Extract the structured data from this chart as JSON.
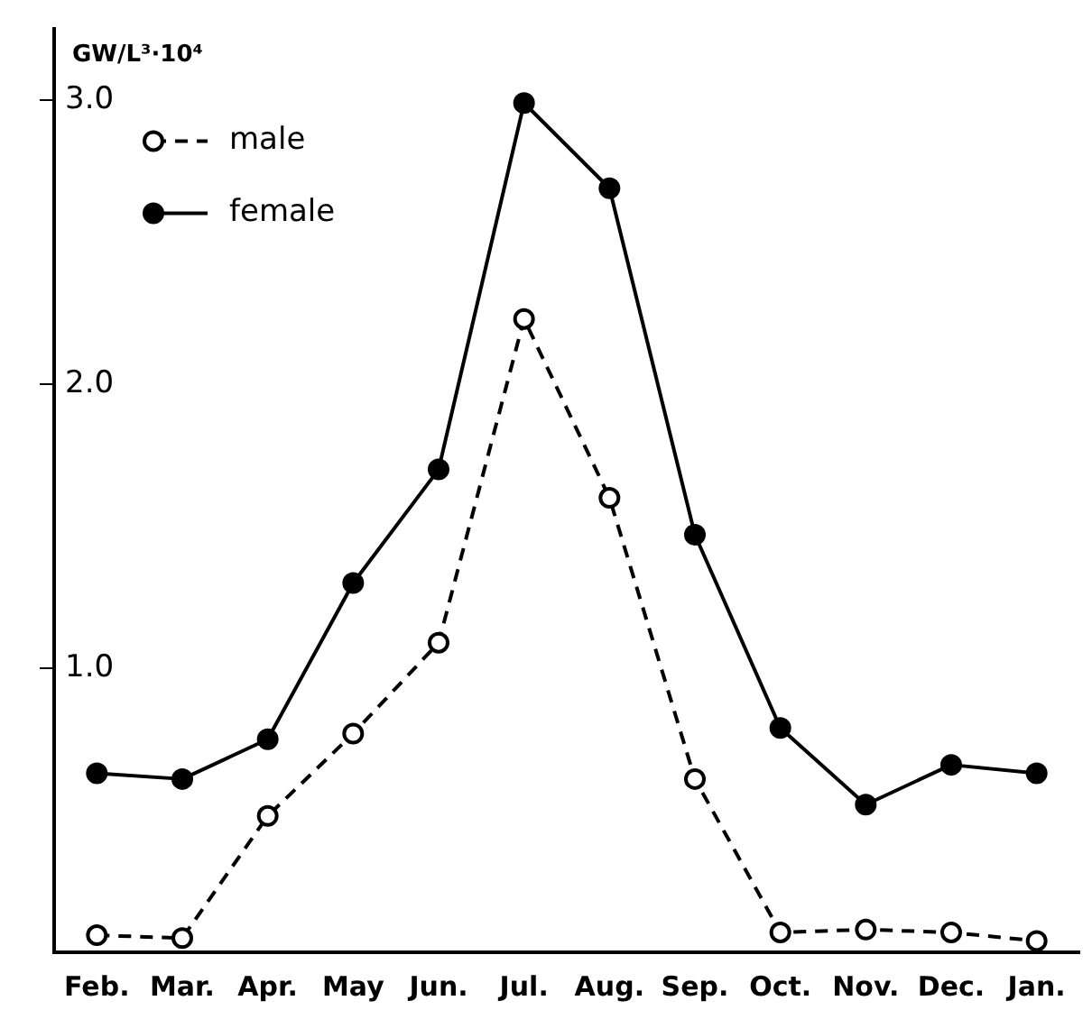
{
  "chart_data": {
    "type": "line",
    "ylabel": "GW/L³·10⁴",
    "categories": [
      "Feb.",
      "Mar.",
      "Apr.",
      "May",
      "Jun.",
      "Jul.",
      "Aug.",
      "Sep.",
      "Oct.",
      "Nov.",
      "Dec.",
      "Jan."
    ],
    "series": [
      {
        "name": "male",
        "color": "#000000",
        "marker": "circle",
        "line_style": "dashed",
        "values": [
          0.06,
          0.05,
          0.48,
          0.77,
          1.09,
          2.23,
          1.6,
          0.61,
          0.07,
          0.08,
          0.07,
          0.04
        ]
      },
      {
        "name": "female",
        "color": "#000000",
        "marker": "circle",
        "line_style": "solid",
        "values": [
          0.63,
          0.61,
          0.75,
          1.3,
          1.7,
          2.99,
          2.69,
          1.47,
          0.79,
          0.52,
          0.66,
          0.63
        ]
      }
    ],
    "ylim": [
      0,
      3.25
    ],
    "yticks": [
      {
        "value": 1,
        "label": "1.0"
      },
      {
        "value": 2,
        "label": "2.0"
      },
      {
        "value": 3,
        "label": "3.0"
      }
    ],
    "grid": false,
    "legend": "top left"
  }
}
